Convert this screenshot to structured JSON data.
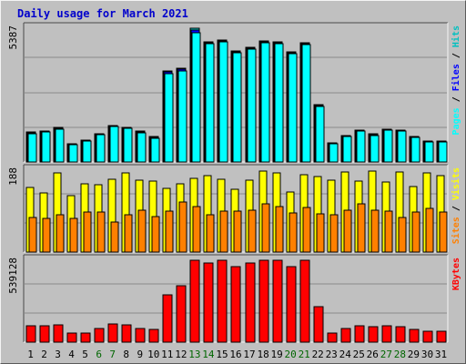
{
  "title": "Daily usage for March 2021",
  "colors": {
    "background": "#c0c0c0",
    "title": "#0000cc",
    "hits": "#00c0c0",
    "files": "#0000ff",
    "pages": "#00ffff",
    "visits": "#ffff00",
    "sites": "#ff8000",
    "kbytes": "#ff0000",
    "weekend_label": "#006600",
    "weekday_label": "#000000"
  },
  "chart_data": [
    {
      "type": "bar",
      "name": "panel-top",
      "y_max_label": "5387",
      "ylim": [
        0,
        5387
      ],
      "right_labels": [
        {
          "text": "Pages",
          "color": "#00ffff"
        },
        {
          "text": " / ",
          "color": "#000000"
        },
        {
          "text": "Files",
          "color": "#0000ff"
        },
        {
          "text": " / ",
          "color": "#000000"
        },
        {
          "text": "Hits",
          "color": "#00c0c0"
        }
      ],
      "categories": [
        "1",
        "2",
        "3",
        "4",
        "5",
        "6",
        "7",
        "8",
        "9",
        "10",
        "11",
        "12",
        "13",
        "14",
        "15",
        "16",
        "17",
        "18",
        "19",
        "20",
        "21",
        "22",
        "23",
        "24",
        "25",
        "26",
        "27",
        "28",
        "29",
        "30",
        "31"
      ],
      "series": [
        {
          "name": "Hits",
          "values": [
            1200,
            1250,
            1380,
            720,
            880,
            1150,
            1480,
            1400,
            1230,
            1010,
            3650,
            3760,
            5387,
            4850,
            4920,
            4480,
            4630,
            4870,
            4850,
            4440,
            4790,
            2300,
            780,
            1080,
            1290,
            1120,
            1330,
            1270,
            1040,
            830,
            830
          ]
        },
        {
          "name": "Files",
          "values": [
            1180,
            1230,
            1360,
            700,
            860,
            1130,
            1460,
            1380,
            1210,
            990,
            3620,
            3730,
            5300,
            4800,
            4880,
            4440,
            4590,
            4830,
            4810,
            4400,
            4750,
            2270,
            760,
            1060,
            1270,
            1100,
            1310,
            1250,
            1020,
            810,
            810
          ]
        },
        {
          "name": "Pages",
          "values": [
            1150,
            1200,
            1330,
            680,
            840,
            1100,
            1430,
            1350,
            1180,
            960,
            3570,
            3680,
            5220,
            4760,
            4830,
            4400,
            4550,
            4790,
            4770,
            4360,
            4710,
            2240,
            740,
            1040,
            1240,
            1080,
            1290,
            1230,
            1000,
            790,
            790
          ]
        }
      ]
    },
    {
      "type": "bar",
      "name": "panel-middle",
      "y_max_label": "188",
      "ylim": [
        0,
        188
      ],
      "right_labels": [
        {
          "text": "Sites",
          "color": "#ff8000"
        },
        {
          "text": " / ",
          "color": "#000000"
        },
        {
          "text": "Visits",
          "color": "#ffff00"
        }
      ],
      "categories": [
        "1",
        "2",
        "3",
        "4",
        "5",
        "6",
        "7",
        "8",
        "9",
        "10",
        "11",
        "12",
        "13",
        "14",
        "15",
        "16",
        "17",
        "18",
        "19",
        "20",
        "21",
        "22",
        "23",
        "24",
        "25",
        "26",
        "27",
        "28",
        "29",
        "30",
        "31"
      ],
      "series": [
        {
          "name": "Visits",
          "values": [
            148,
            136,
            181,
            129,
            157,
            155,
            168,
            181,
            165,
            163,
            147,
            156,
            169,
            175,
            168,
            144,
            164,
            185,
            181,
            138,
            178,
            174,
            164,
            183,
            162,
            186,
            160,
            183,
            151,
            181,
            176
          ]
        },
        {
          "name": "Sites",
          "values": [
            79,
            77,
            85,
            77,
            92,
            92,
            68,
            85,
            96,
            82,
            94,
            114,
            105,
            86,
            93,
            94,
            96,
            110,
            105,
            89,
            103,
            88,
            86,
            97,
            111,
            96,
            94,
            80,
            92,
            101,
            92
          ]
        }
      ]
    },
    {
      "type": "bar",
      "name": "panel-bottom",
      "y_max_label": "539128",
      "ylim": [
        0,
        539128
      ],
      "right_labels": [
        {
          "text": "KBytes",
          "color": "#ff0000"
        }
      ],
      "categories": [
        "1",
        "2",
        "3",
        "4",
        "5",
        "6",
        "7",
        "8",
        "9",
        "10",
        "11",
        "12",
        "13",
        "14",
        "15",
        "16",
        "17",
        "18",
        "19",
        "20",
        "21",
        "22",
        "23",
        "24",
        "25",
        "26",
        "27",
        "28",
        "29",
        "30",
        "31"
      ],
      "series": [
        {
          "name": "KBytes",
          "values": [
            105000,
            105000,
            112000,
            58000,
            62000,
            90000,
            118000,
            112000,
            88000,
            82000,
            310000,
            370000,
            539128,
            519000,
            539128,
            499000,
            519000,
            539128,
            539128,
            499000,
            539128,
            235000,
            58000,
            92000,
            105000,
            99000,
            105000,
            99000,
            86000,
            70000,
            70000
          ]
        }
      ]
    }
  ],
  "x_labels": [
    {
      "text": "1",
      "weekend": false
    },
    {
      "text": "2",
      "weekend": false
    },
    {
      "text": "3",
      "weekend": false
    },
    {
      "text": "4",
      "weekend": false
    },
    {
      "text": "5",
      "weekend": false
    },
    {
      "text": "6",
      "weekend": true
    },
    {
      "text": "7",
      "weekend": true
    },
    {
      "text": "8",
      "weekend": false
    },
    {
      "text": "9",
      "weekend": false
    },
    {
      "text": "10",
      "weekend": false
    },
    {
      "text": "11",
      "weekend": false
    },
    {
      "text": "12",
      "weekend": false
    },
    {
      "text": "13",
      "weekend": true
    },
    {
      "text": "14",
      "weekend": true
    },
    {
      "text": "15",
      "weekend": false
    },
    {
      "text": "16",
      "weekend": false
    },
    {
      "text": "17",
      "weekend": false
    },
    {
      "text": "18",
      "weekend": false
    },
    {
      "text": "19",
      "weekend": false
    },
    {
      "text": "20",
      "weekend": true
    },
    {
      "text": "21",
      "weekend": true
    },
    {
      "text": "22",
      "weekend": false
    },
    {
      "text": "23",
      "weekend": false
    },
    {
      "text": "24",
      "weekend": false
    },
    {
      "text": "25",
      "weekend": false
    },
    {
      "text": "26",
      "weekend": false
    },
    {
      "text": "27",
      "weekend": true
    },
    {
      "text": "28",
      "weekend": true
    },
    {
      "text": "29",
      "weekend": false
    },
    {
      "text": "30",
      "weekend": false
    },
    {
      "text": "31",
      "weekend": false
    }
  ]
}
